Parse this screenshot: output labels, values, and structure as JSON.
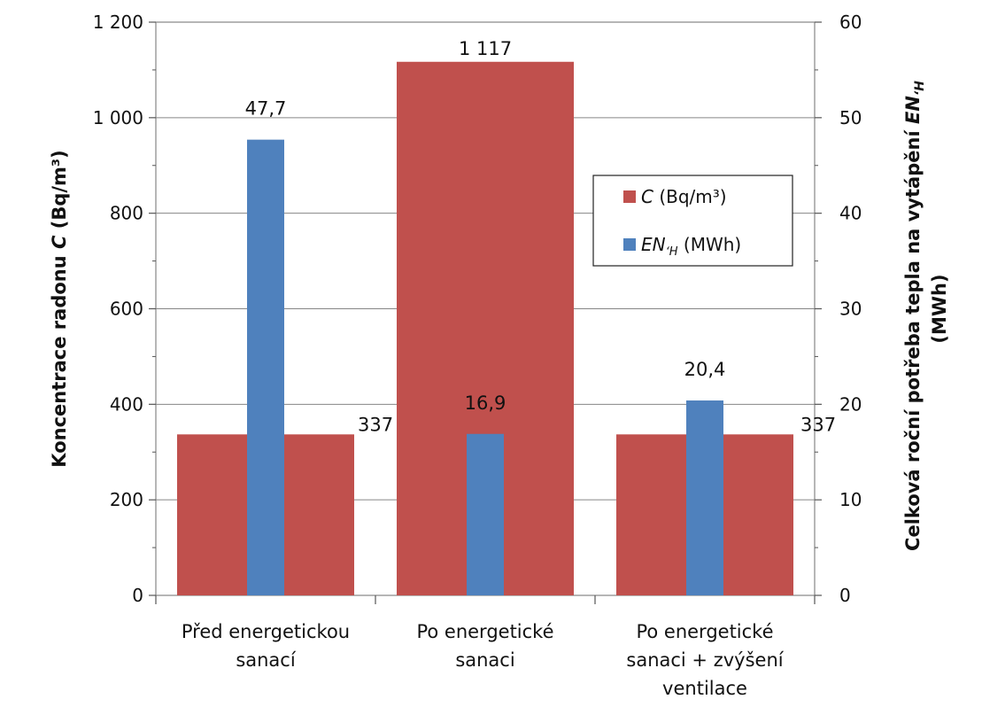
{
  "chart_data": {
    "type": "bar",
    "categories": [
      [
        "Před energetickou",
        "sanací"
      ],
      [
        "Po energetické",
        "sanaci"
      ],
      [
        "Po energetické",
        "sanaci + zvýšení",
        "ventilace"
      ]
    ],
    "series": [
      {
        "name_main": "C",
        "name_rest": " (Bq/m³)",
        "axis": "left",
        "color": "#c0504d",
        "values": [
          337,
          1117,
          337
        ],
        "labels": [
          "337",
          "1 117",
          "337"
        ]
      },
      {
        "name_main": "EN",
        "name_sub": "ʻH",
        "name_rest": " (MWh)",
        "axis": "right",
        "color": "#4f81bd",
        "values": [
          47.7,
          16.9,
          20.4
        ],
        "labels": [
          "47,7",
          "16,9",
          "20,4"
        ]
      }
    ],
    "y_left": {
      "title_main": "Koncentrace radonu ",
      "title_var": "C",
      "title_unit": "  (Bq/m³)",
      "range": [
        0,
        1200
      ],
      "ticks": [
        0,
        200,
        400,
        600,
        800,
        1000,
        1200
      ],
      "tick_labels": [
        "0",
        "200",
        "400",
        "600",
        "800",
        "1 000",
        "1 200"
      ]
    },
    "y_right": {
      "title_line1": "Celková roční potřeba tepla na vytápění  ",
      "title_var": "EN",
      "title_sub": "ʻH",
      "title_line2": "(MWh)",
      "range": [
        0,
        60
      ],
      "ticks": [
        0,
        10,
        20,
        30,
        40,
        50,
        60
      ],
      "tick_labels": [
        "0",
        "10",
        "20",
        "30",
        "40",
        "50",
        "60"
      ]
    },
    "grid": true,
    "legend": "right-center"
  }
}
